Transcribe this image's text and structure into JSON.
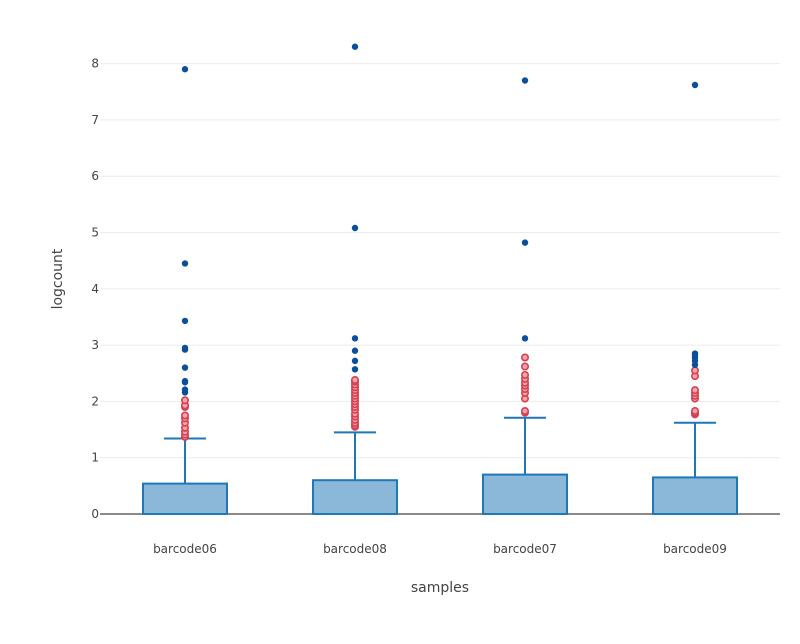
{
  "chart_data": {
    "type": "box",
    "xlabel": "samples",
    "ylabel": "logcount",
    "ylim": [
      -0.35,
      8.7
    ],
    "yticks": [
      0,
      1,
      2,
      3,
      4,
      5,
      6,
      7,
      8
    ],
    "grid": true,
    "colors": {
      "box_fill": "#8bb8d9",
      "box_line": "#1f77b4",
      "outlier_suspected": "#d6404f",
      "outlier_point": "#0b4f9a",
      "grid": "#ebebeb",
      "axis": "#444444"
    },
    "categories": [
      "barcode06",
      "barcode08",
      "barcode07",
      "barcode09"
    ],
    "boxes": [
      {
        "name": "barcode06",
        "min": 0,
        "q1": 0,
        "median": 0,
        "q3": 0.54,
        "upper_fence": 1.34,
        "suspected_outliers": [
          1.37,
          1.41,
          1.46,
          1.53,
          1.62,
          1.7,
          1.75,
          1.9,
          1.93,
          2.02
        ],
        "outliers": [
          2.16,
          2.21,
          2.34,
          2.36,
          2.6,
          2.92,
          2.95,
          3.43,
          4.45,
          7.9
        ]
      },
      {
        "name": "barcode08",
        "min": 0,
        "q1": 0,
        "median": 0,
        "q3": 0.6,
        "upper_fence": 1.45,
        "suspected_outliers": [
          1.55,
          1.58,
          1.62,
          1.67,
          1.73,
          1.78,
          1.85,
          1.9,
          1.95,
          2.0,
          2.05,
          2.1,
          2.15,
          2.2,
          2.25,
          2.3,
          2.35,
          2.38
        ],
        "outliers": [
          2.57,
          2.72,
          2.9,
          3.12,
          5.08,
          8.3
        ]
      },
      {
        "name": "barcode07",
        "min": 0,
        "q1": 0,
        "median": 0,
        "q3": 0.7,
        "upper_fence": 1.71,
        "suspected_outliers": [
          1.8,
          1.83,
          2.05,
          2.15,
          2.22,
          2.28,
          2.33,
          2.4,
          2.47,
          2.62,
          2.78
        ],
        "outliers": [
          3.12,
          4.82,
          7.7
        ]
      },
      {
        "name": "barcode09",
        "min": 0,
        "q1": 0,
        "median": 0,
        "q3": 0.65,
        "upper_fence": 1.62,
        "suspected_outliers": [
          1.77,
          1.8,
          1.83,
          2.05,
          2.1,
          2.15,
          2.2,
          2.45,
          2.55
        ],
        "outliers": [
          2.65,
          2.72,
          2.77,
          2.82,
          2.85,
          7.62
        ]
      }
    ]
  }
}
